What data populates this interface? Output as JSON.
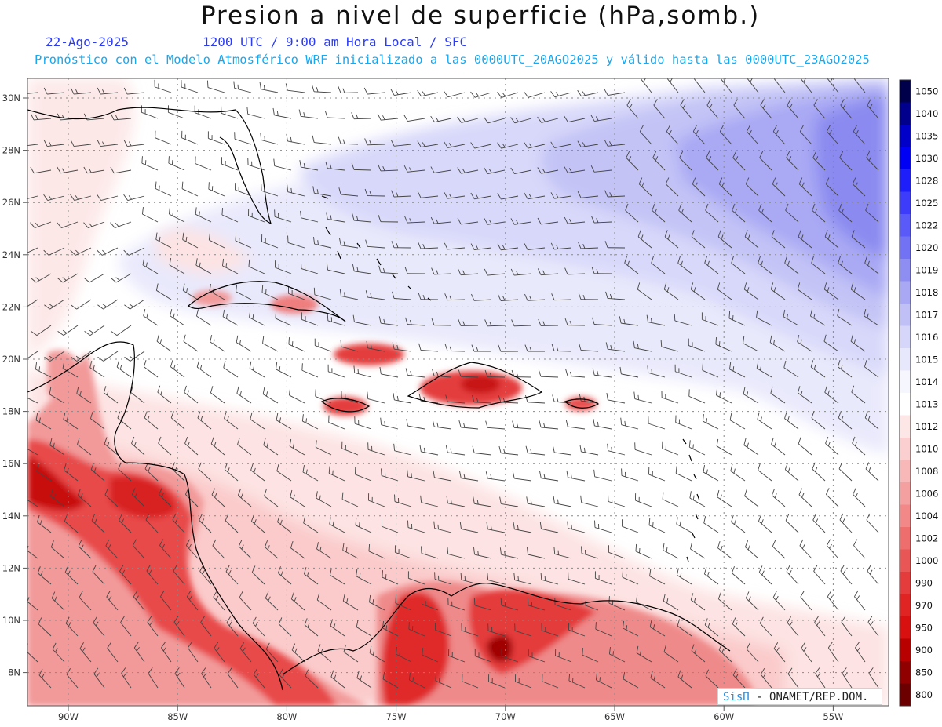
{
  "header": {
    "title": "Presion a nivel de superficie (hPa,somb.)",
    "date": "22-Ago-2025",
    "time_info": "1200 UTC / 9:00 am Hora Local / SFC",
    "model_info": "Pronóstico con el Modelo Atmosférico WRF inicializado a las 0000UTC_20AGO2025 y válido hasta las  0000UTC_23AGO2025"
  },
  "map": {
    "lat_labels": [
      "30N",
      "28N",
      "26N",
      "24N",
      "22N",
      "20N",
      "18N",
      "16N",
      "14N",
      "12N",
      "10N",
      "8N"
    ],
    "lon_labels": [
      "90W",
      "85W",
      "80W",
      "75W",
      "70W",
      "65W",
      "60W",
      "55W"
    ],
    "gridline_color": "#888888"
  },
  "legend": {
    "levels": [
      "1050",
      "1040",
      "1035",
      "1030",
      "1028",
      "1025",
      "1022",
      "1020",
      "1019",
      "1018",
      "1017",
      "1016",
      "1015",
      "1014",
      "1013",
      "1012",
      "1010",
      "1008",
      "1006",
      "1004",
      "1002",
      "1000",
      "990",
      "970",
      "950",
      "900",
      "850",
      "800"
    ],
    "colors": [
      "#00004a",
      "#00008c",
      "#0000c8",
      "#0000f5",
      "#1e1efa",
      "#3c3cfa",
      "#5a5af8",
      "#7272f4",
      "#8e8ef2",
      "#a8a8f5",
      "#c0c0f7",
      "#d6d6fa",
      "#e8e8fc",
      "#f6f6fe",
      "#ffffff",
      "#fde6e6",
      "#fbcfcf",
      "#f8b8b8",
      "#f5a0a0",
      "#f28888",
      "#ee6e6e",
      "#e85656",
      "#e43c3c",
      "#e02424",
      "#d81010",
      "#b80000",
      "#900000",
      "#6c0000"
    ]
  },
  "credit": {
    "brand": "SisΠ",
    "text": "- ONAMET/REP.DOM."
  }
}
